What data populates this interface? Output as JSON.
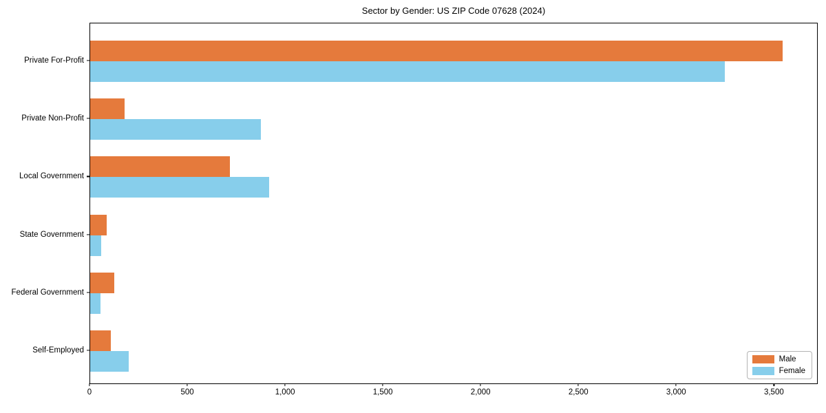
{
  "title": "Sector by Gender: US ZIP Code 07628 (2024)",
  "colors": {
    "male": "#e57a3c",
    "female": "#87ceeb",
    "axis": "#000000",
    "legend_border": "#b3b3b3",
    "background": "#ffffff"
  },
  "chart_data": {
    "type": "bar",
    "orientation": "horizontal",
    "title": "Sector by Gender: US ZIP Code 07628 (2024)",
    "xlabel": "",
    "ylabel": "",
    "categories": [
      "Private For-Profit",
      "Private Non-Profit",
      "Local Government",
      "State Government",
      "Federal Government",
      "Self-Employed"
    ],
    "series": [
      {
        "name": "Male",
        "color": "#e57a3c",
        "values": [
          3540,
          175,
          715,
          85,
          123,
          106
        ]
      },
      {
        "name": "Female",
        "color": "#87ceeb",
        "values": [
          3245,
          873,
          916,
          56,
          53,
          197
        ]
      }
    ],
    "xlim": [
      0,
      3717
    ],
    "x_ticks": [
      0,
      500,
      1000,
      1500,
      2000,
      2500,
      3000,
      3500
    ],
    "x_tick_labels": [
      "0",
      "500",
      "1,000",
      "1,500",
      "2,000",
      "2,500",
      "3,000",
      "3,500"
    ],
    "grid": false,
    "legend": {
      "position": "lower right",
      "entries": [
        {
          "label": "Male",
          "color": "#e57a3c"
        },
        {
          "label": "Female",
          "color": "#87ceeb"
        }
      ]
    }
  }
}
